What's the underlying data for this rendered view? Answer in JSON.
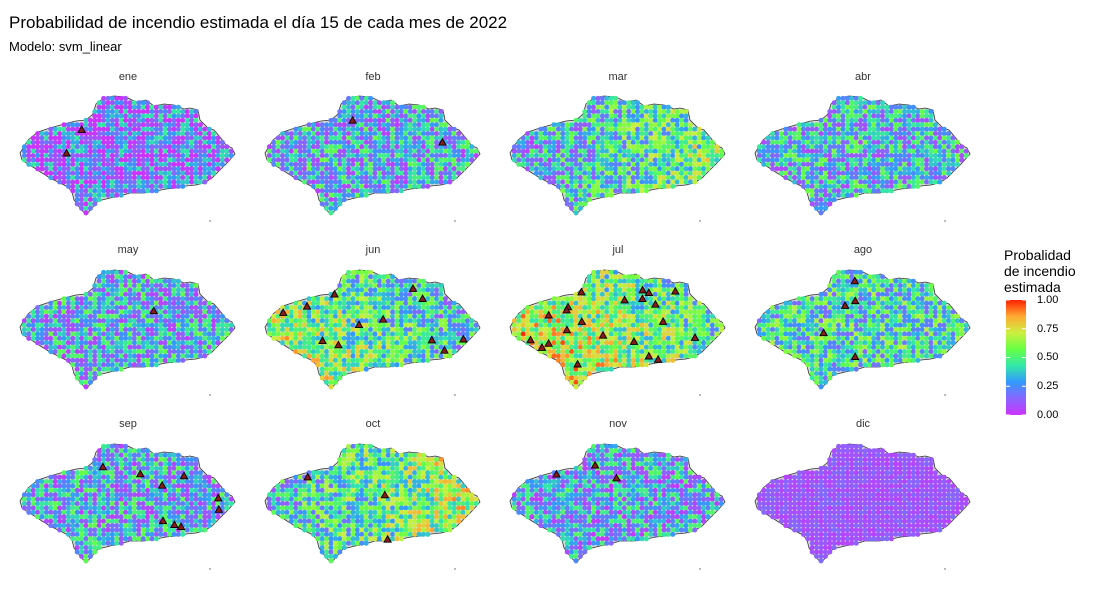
{
  "title": "Probabilidad de incendio estimada el día 15 de cada mes de 2022",
  "subtitle": "Modelo: svm_linear",
  "chart_data": {
    "type": "heatmap",
    "facets": [
      "ene",
      "feb",
      "mar",
      "abr",
      "may",
      "jun",
      "jul",
      "ago",
      "sep",
      "oct",
      "nov",
      "dic"
    ],
    "mean_probability": [
      0.18,
      0.3,
      0.42,
      0.33,
      0.3,
      0.48,
      0.58,
      0.42,
      0.3,
      0.5,
      0.28,
      0.1
    ],
    "fire_marker_counts": [
      2,
      2,
      0,
      0,
      1,
      12,
      22,
      5,
      9,
      3,
      3,
      0
    ],
    "legend": {
      "title": [
        "Probalidad",
        "de incendio",
        "estimada"
      ],
      "ticks": [
        "1.00",
        "0.75",
        "0.50",
        "0.25",
        "0.00"
      ],
      "tick_values": [
        1.0,
        0.75,
        0.5,
        0.25,
        0.0
      ],
      "colors": [
        "#cc33ff",
        "#8866ff",
        "#3399ff",
        "#33e8a8",
        "#66ff44",
        "#ccf040",
        "#ffaa33",
        "#ff2200"
      ]
    },
    "marker_fill": "#8b1a1a",
    "ylim": [
      0,
      1
    ]
  }
}
